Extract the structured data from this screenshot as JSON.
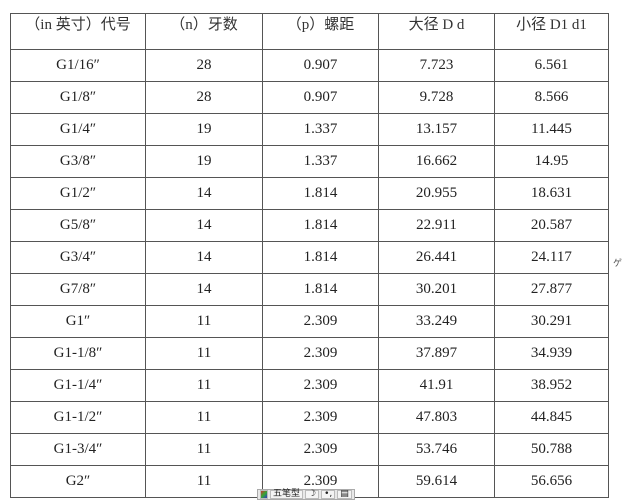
{
  "headers": [
    "（in 英寸）代号",
    "（n）牙数",
    "（p）螺距",
    "大径 D d",
    "小径  D1 d1"
  ],
  "rows": [
    [
      "G1/16″",
      "28",
      "0.907",
      "7.723",
      "6.561"
    ],
    [
      "G1/8″",
      "28",
      "0.907",
      "9.728",
      "8.566"
    ],
    [
      "G1/4″",
      "19",
      "1.337",
      "13.157",
      "11.445"
    ],
    [
      "G3/8″",
      "19",
      "1.337",
      "16.662",
      "14.95"
    ],
    [
      "G1/2″",
      "14",
      "1.814",
      "20.955",
      "18.631"
    ],
    [
      "G5/8″",
      "14",
      "1.814",
      "22.911",
      "20.587"
    ],
    [
      "G3/4″",
      "14",
      "1.814",
      "26.441",
      "24.117"
    ],
    [
      "G7/8″",
      "14",
      "1.814",
      "30.201",
      "27.877"
    ],
    [
      "G1″",
      "11",
      "2.309",
      "33.249",
      "30.291"
    ],
    [
      "G1-1/8″",
      "11",
      "2.309",
      "37.897",
      "34.939"
    ],
    [
      "G1-1/4″",
      "11",
      "2.309",
      "41.91",
      "38.952"
    ],
    [
      "G1-1/2″",
      "11",
      "2.309",
      "47.803",
      "44.845"
    ],
    [
      "G1-3/4″",
      "11",
      "2.309",
      "53.746",
      "50.788"
    ],
    [
      "G2″",
      "11",
      "2.309",
      "59.614",
      "56.656"
    ]
  ],
  "ime": {
    "mode": "五笔型",
    "moon": "☽",
    "punct": "•,",
    "keyboard": "▤"
  }
}
